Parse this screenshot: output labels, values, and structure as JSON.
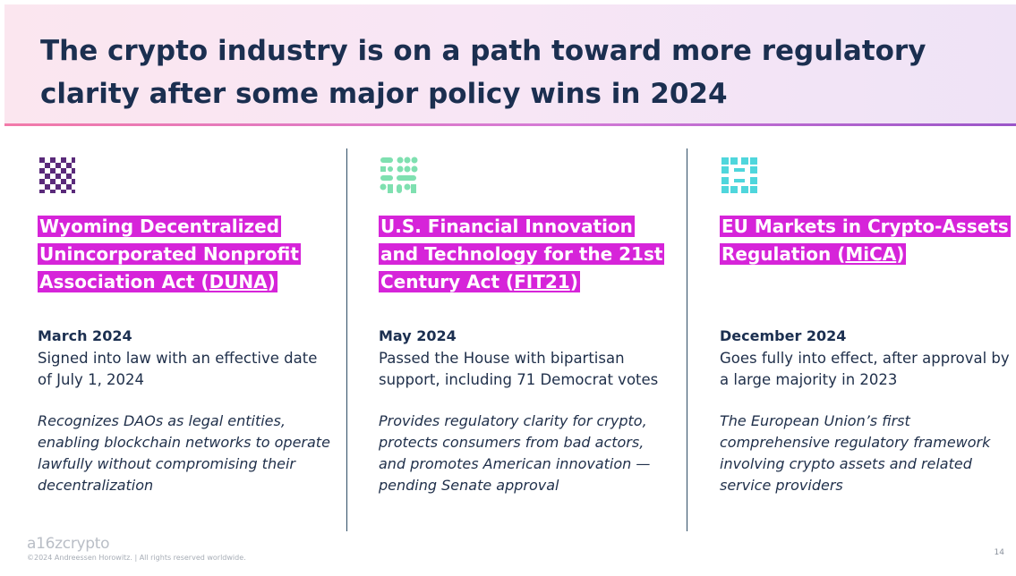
{
  "title": "The crypto industry is on a path toward more regulatory clarity after some major policy wins in 2024",
  "columns": [
    {
      "icon": "pattern-icon-purple",
      "act_main": "Wyoming Decentralized Unincorporated Nonprofit Association Act (",
      "act_abbr": "DUNA",
      "act_end": ")",
      "date": "March 2024",
      "description": "Signed into law with an effective date of July 1, 2024",
      "note": "Recognizes DAOs as legal entities, enabling blockchain networks to operate lawfully without compromising their decentralization"
    },
    {
      "icon": "pattern-icon-green",
      "act_main": "U.S. Financial Innovation and Technology for the 21st Century Act (",
      "act_abbr": "FIT21",
      "act_end": ")",
      "date": "May 2024",
      "description": "Passed the House with bipartisan support, including 71 Democrat votes",
      "note": "Provides regulatory clarity for crypto, protects consumers from bad actors, and promotes American innovation — pending Senate approval"
    },
    {
      "icon": "pattern-icon-teal",
      "act_main": "EU Markets in Crypto-Assets Regulation (",
      "act_abbr": "MiCA",
      "act_end": ")",
      "date": "December 2024",
      "description": "Goes fully into effect, after approval by a large majority in 2023",
      "note": "The European Union’s first comprehensive regulatory framework involving crypto assets and related service providers"
    }
  ],
  "footer": {
    "brand": "a16zcrypto",
    "copyright": "©2024 Andreessen Horowitz. |  All rights reserved worldwide.",
    "page_number": "14"
  },
  "colors": {
    "highlight": "#d624d9",
    "title": "#1b2f50",
    "icon1": "#5a2a7a",
    "icon2": "#7fe0b0",
    "icon3": "#4fd6dc"
  }
}
